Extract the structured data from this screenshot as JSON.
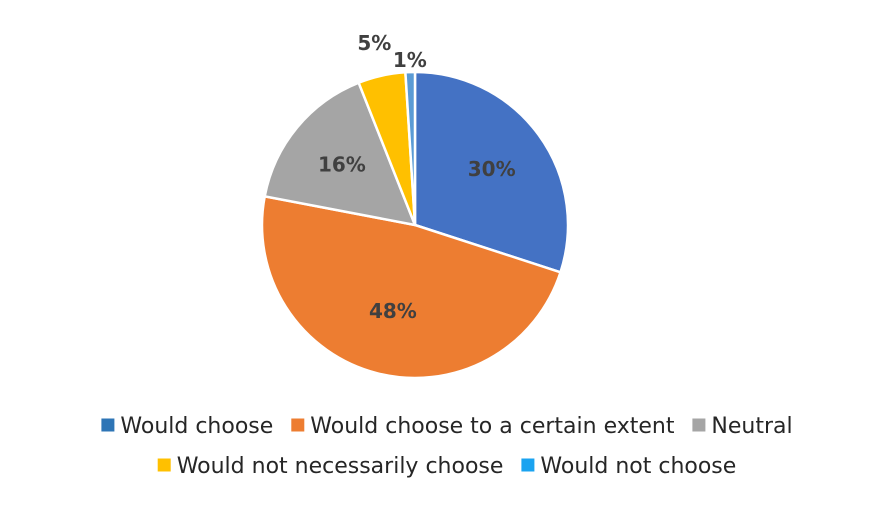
{
  "chart_data": {
    "type": "pie",
    "title": "",
    "categories": [
      "Would choose",
      "Would choose to a certain extent",
      "Neutral",
      "Would not necessarily choose",
      "Would not choose"
    ],
    "values": [
      30,
      48,
      16,
      5,
      1
    ],
    "data_labels": [
      "30%",
      "48%",
      "16%",
      "5%",
      "1%"
    ],
    "colors": [
      "#4472C4",
      "#ED7D31",
      "#A5A5A5",
      "#FFC000",
      "#5B9BD5"
    ],
    "legend_colors": [
      "#2E75B6",
      "#ED7D31",
      "#A5A5A5",
      "#FFC000",
      "#1AA3F0"
    ],
    "start_angle_deg": 0,
    "direction": "clockwise",
    "legend_position": "bottom"
  }
}
